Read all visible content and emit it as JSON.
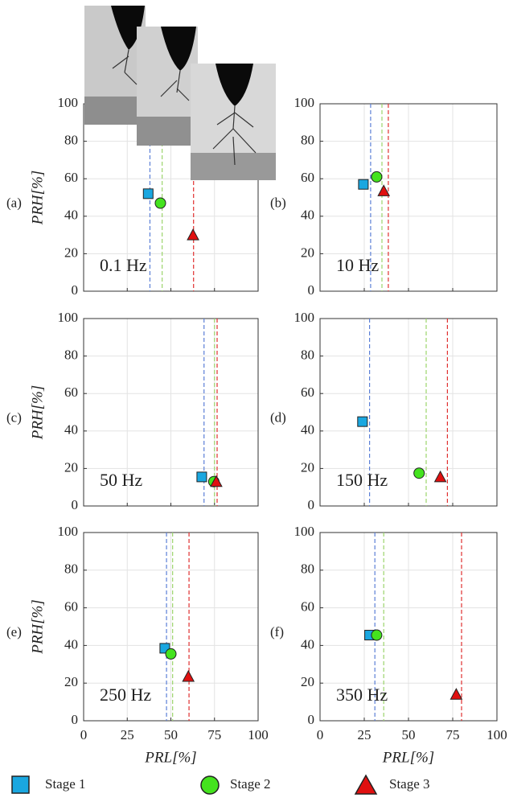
{
  "series": [
    {
      "name": "Stage 1",
      "color": "#1aa7e0",
      "line_color": "#5b7fd6",
      "marker": "square"
    },
    {
      "name": "Stage 2",
      "color": "#44e31e",
      "line_color": "#9bd46b",
      "marker": "circle"
    },
    {
      "name": "Stage 3",
      "color": "#e01010",
      "line_color": "#e03030",
      "marker": "triangle"
    }
  ],
  "chart_data": [
    {
      "type": "scatter",
      "label": "(a)",
      "annotation": "0.1 Hz",
      "ylabel": "PRH[%]",
      "x_values": [
        37,
        44,
        62.7
      ],
      "y_values": [
        52,
        47,
        30
      ],
      "thresholds": [
        38,
        45,
        63
      ],
      "xlim": [
        0,
        100
      ],
      "ylim": [
        0,
        100
      ],
      "xticks": [
        0,
        25,
        50,
        75,
        100
      ],
      "yticks": [
        0,
        20,
        40,
        60,
        80,
        100
      ],
      "grid": true
    },
    {
      "type": "scatter",
      "label": "(b)",
      "annotation": "10 Hz",
      "x_values": [
        24.5,
        32,
        36
      ],
      "y_values": [
        57,
        61,
        53.5
      ],
      "thresholds": [
        28.6,
        35,
        38.6
      ],
      "xlim": [
        0,
        100
      ],
      "ylim": [
        0,
        100
      ],
      "xticks": [
        0,
        25,
        50,
        75,
        100
      ],
      "yticks": [
        0,
        20,
        40,
        60,
        80,
        100
      ],
      "grid": true
    },
    {
      "type": "scatter",
      "label": "(c)",
      "annotation": "50 Hz",
      "ylabel": "PRH[%]",
      "x_values": [
        67.7,
        74.6,
        76
      ],
      "y_values": [
        15.5,
        13,
        13
      ],
      "thresholds": [
        69,
        75,
        76.5
      ],
      "xlim": [
        0,
        100
      ],
      "ylim": [
        0,
        100
      ],
      "xticks": [
        0,
        25,
        50,
        75,
        100
      ],
      "yticks": [
        0,
        20,
        40,
        60,
        80,
        100
      ],
      "grid": true
    },
    {
      "type": "scatter",
      "label": "(d)",
      "annotation": "150 Hz",
      "x_values": [
        24,
        56,
        68
      ],
      "y_values": [
        45,
        17.5,
        15.5
      ],
      "thresholds": [
        28,
        60,
        72
      ],
      "xlim": [
        0,
        100
      ],
      "ylim": [
        0,
        100
      ],
      "xticks": [
        0,
        25,
        50,
        75,
        100
      ],
      "yticks": [
        0,
        20,
        40,
        60,
        80,
        100
      ],
      "grid": true
    },
    {
      "type": "scatter",
      "label": "(e)",
      "annotation": "250 Hz",
      "ylabel": "PRH[%]",
      "xlabel": "PRL[%]",
      "x_values": [
        46.5,
        50,
        60
      ],
      "y_values": [
        38.5,
        35.5,
        23.5
      ],
      "thresholds": [
        47.5,
        51,
        60.4
      ],
      "xlim": [
        0,
        100
      ],
      "ylim": [
        0,
        100
      ],
      "xticks": [
        0,
        25,
        50,
        75,
        100
      ],
      "yticks": [
        0,
        20,
        40,
        60,
        80,
        100
      ],
      "grid": true
    },
    {
      "type": "scatter",
      "label": "(f)",
      "annotation": "350 Hz",
      "xlabel": "PRL[%]",
      "x_values": [
        28,
        32,
        77
      ],
      "y_values": [
        45.5,
        45.5,
        14
      ],
      "thresholds": [
        31,
        36,
        80
      ],
      "xlim": [
        0,
        100
      ],
      "ylim": [
        0,
        100
      ],
      "xticks": [
        0,
        25,
        50,
        75,
        100
      ],
      "yticks": [
        0,
        20,
        40,
        60,
        80,
        100
      ],
      "grid": true
    }
  ]
}
